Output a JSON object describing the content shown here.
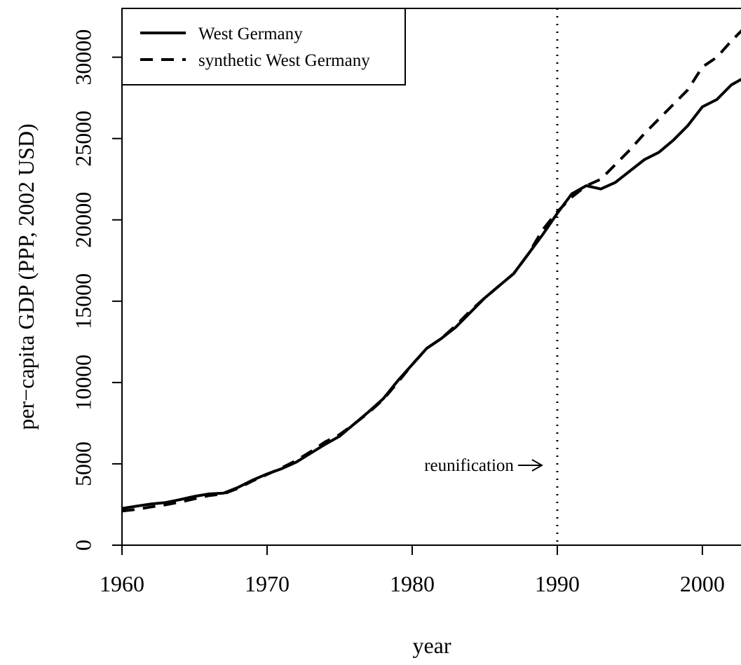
{
  "chart_data": {
    "type": "line",
    "x_label": "year",
    "y_label": "per−capita GDP (PPP, 2002 USD)",
    "x": [
      1960,
      1961,
      1962,
      1963,
      1964,
      1965,
      1966,
      1967,
      1968,
      1969,
      1970,
      1971,
      1972,
      1973,
      1974,
      1975,
      1976,
      1977,
      1978,
      1979,
      1980,
      1981,
      1982,
      1983,
      1984,
      1985,
      1986,
      1987,
      1988,
      1989,
      1990,
      1991,
      1992,
      1993,
      1994,
      1995,
      1996,
      1997,
      1998,
      1999,
      2000,
      2001,
      2002,
      2003
    ],
    "series": [
      {
        "name": "West Germany",
        "color": "#000000",
        "dash": "solid",
        "values": [
          2260,
          2400,
          2530,
          2620,
          2800,
          3000,
          3150,
          3200,
          3550,
          4000,
          4380,
          4700,
          5100,
          5650,
          6200,
          6700,
          7450,
          8200,
          9000,
          10100,
          11100,
          12100,
          12700,
          13400,
          14300,
          15200,
          15950,
          16700,
          17900,
          19100,
          20400,
          21600,
          22100,
          21900,
          22300,
          23000,
          23700,
          24150,
          24900,
          25800,
          26950,
          27400,
          28300,
          28800
        ]
      },
      {
        "name": "synthetic West Germany",
        "color": "#000000",
        "dash": "dashed",
        "values": [
          2100,
          2200,
          2350,
          2480,
          2650,
          2850,
          3050,
          3150,
          3500,
          3950,
          4350,
          4750,
          5200,
          5750,
          6350,
          6800,
          7450,
          8150,
          8950,
          10000,
          11100,
          12100,
          12700,
          13500,
          14400,
          15200,
          15950,
          16700,
          17900,
          19400,
          20500,
          21400,
          22100,
          22500,
          23400,
          24300,
          25300,
          26200,
          27100,
          28000,
          29400,
          30000,
          31000,
          31900
        ]
      }
    ],
    "vline": 1990,
    "annotation": "reunification",
    "xlim": [
      1960,
      2003
    ],
    "xticks": [
      1960,
      1970,
      1980,
      1990,
      2000
    ],
    "ylim": [
      0,
      33000
    ],
    "yticks": [
      0,
      5000,
      10000,
      15000,
      20000,
      25000,
      30000
    ],
    "legend": "top-left"
  }
}
